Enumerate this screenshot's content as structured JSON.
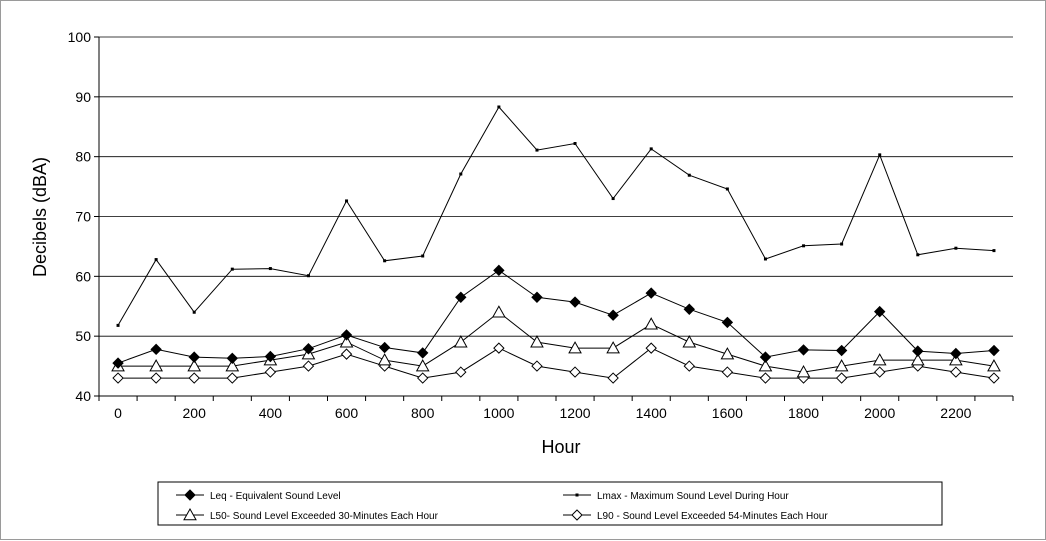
{
  "chart_data": {
    "type": "line",
    "title": "",
    "xlabel": "Hour",
    "ylabel": "Decibels (dBA)",
    "ylim": [
      40,
      100
    ],
    "yticks": [
      40,
      50,
      60,
      70,
      80,
      90,
      100
    ],
    "x_tick_labels": [
      "0",
      "200",
      "400",
      "600",
      "800",
      "1000",
      "1200",
      "1400",
      "1600",
      "1800",
      "2000",
      "2200"
    ],
    "x": [
      0,
      100,
      200,
      300,
      400,
      500,
      600,
      700,
      800,
      900,
      1000,
      1100,
      1200,
      1300,
      1400,
      1500,
      1600,
      1700,
      1800,
      1900,
      2000,
      2100,
      2200,
      2300
    ],
    "grid": "horizontal",
    "legend_position": "bottom",
    "series": [
      {
        "name": "Leq - Equivalent Sound Level",
        "marker": "filled-diamond",
        "values": [
          45.5,
          47.8,
          46.5,
          46.3,
          46.6,
          47.9,
          50.2,
          48.1,
          47.2,
          56.5,
          61.0,
          56.5,
          55.7,
          53.5,
          57.2,
          54.5,
          52.3,
          46.5,
          47.7,
          47.6,
          54.1,
          47.5,
          47.1,
          47.6
        ]
      },
      {
        "name": "Lmax - Maximum Sound Level During Hour",
        "marker": "small-square",
        "values": [
          51.8,
          62.8,
          54.0,
          61.2,
          61.3,
          60.1,
          72.6,
          62.6,
          63.4,
          77.1,
          88.3,
          81.1,
          82.2,
          73.0,
          81.3,
          76.9,
          74.6,
          62.9,
          65.1,
          65.4,
          80.3,
          63.6,
          64.7,
          64.3
        ]
      },
      {
        "name": "L50- Sound Level Exceeded 30-Minutes Each Hour",
        "marker": "open-triangle",
        "values": [
          45.0,
          45.0,
          45.0,
          45.0,
          46.0,
          47.0,
          49.0,
          46.0,
          45.0,
          49.0,
          54.0,
          49.0,
          48.0,
          48.0,
          52.0,
          49.0,
          47.0,
          45.0,
          44.0,
          45.0,
          46.0,
          46.0,
          46.0,
          45.0
        ]
      },
      {
        "name": "L90 - Sound Level Exceeded 54-Minutes Each Hour",
        "marker": "open-diamond",
        "values": [
          43.0,
          43.0,
          43.0,
          43.0,
          44.0,
          45.0,
          47.0,
          45.0,
          43.0,
          44.0,
          48.0,
          45.0,
          44.0,
          43.0,
          48.0,
          45.0,
          44.0,
          43.0,
          43.0,
          43.0,
          44.0,
          45.0,
          44.0,
          43.0
        ]
      }
    ]
  }
}
